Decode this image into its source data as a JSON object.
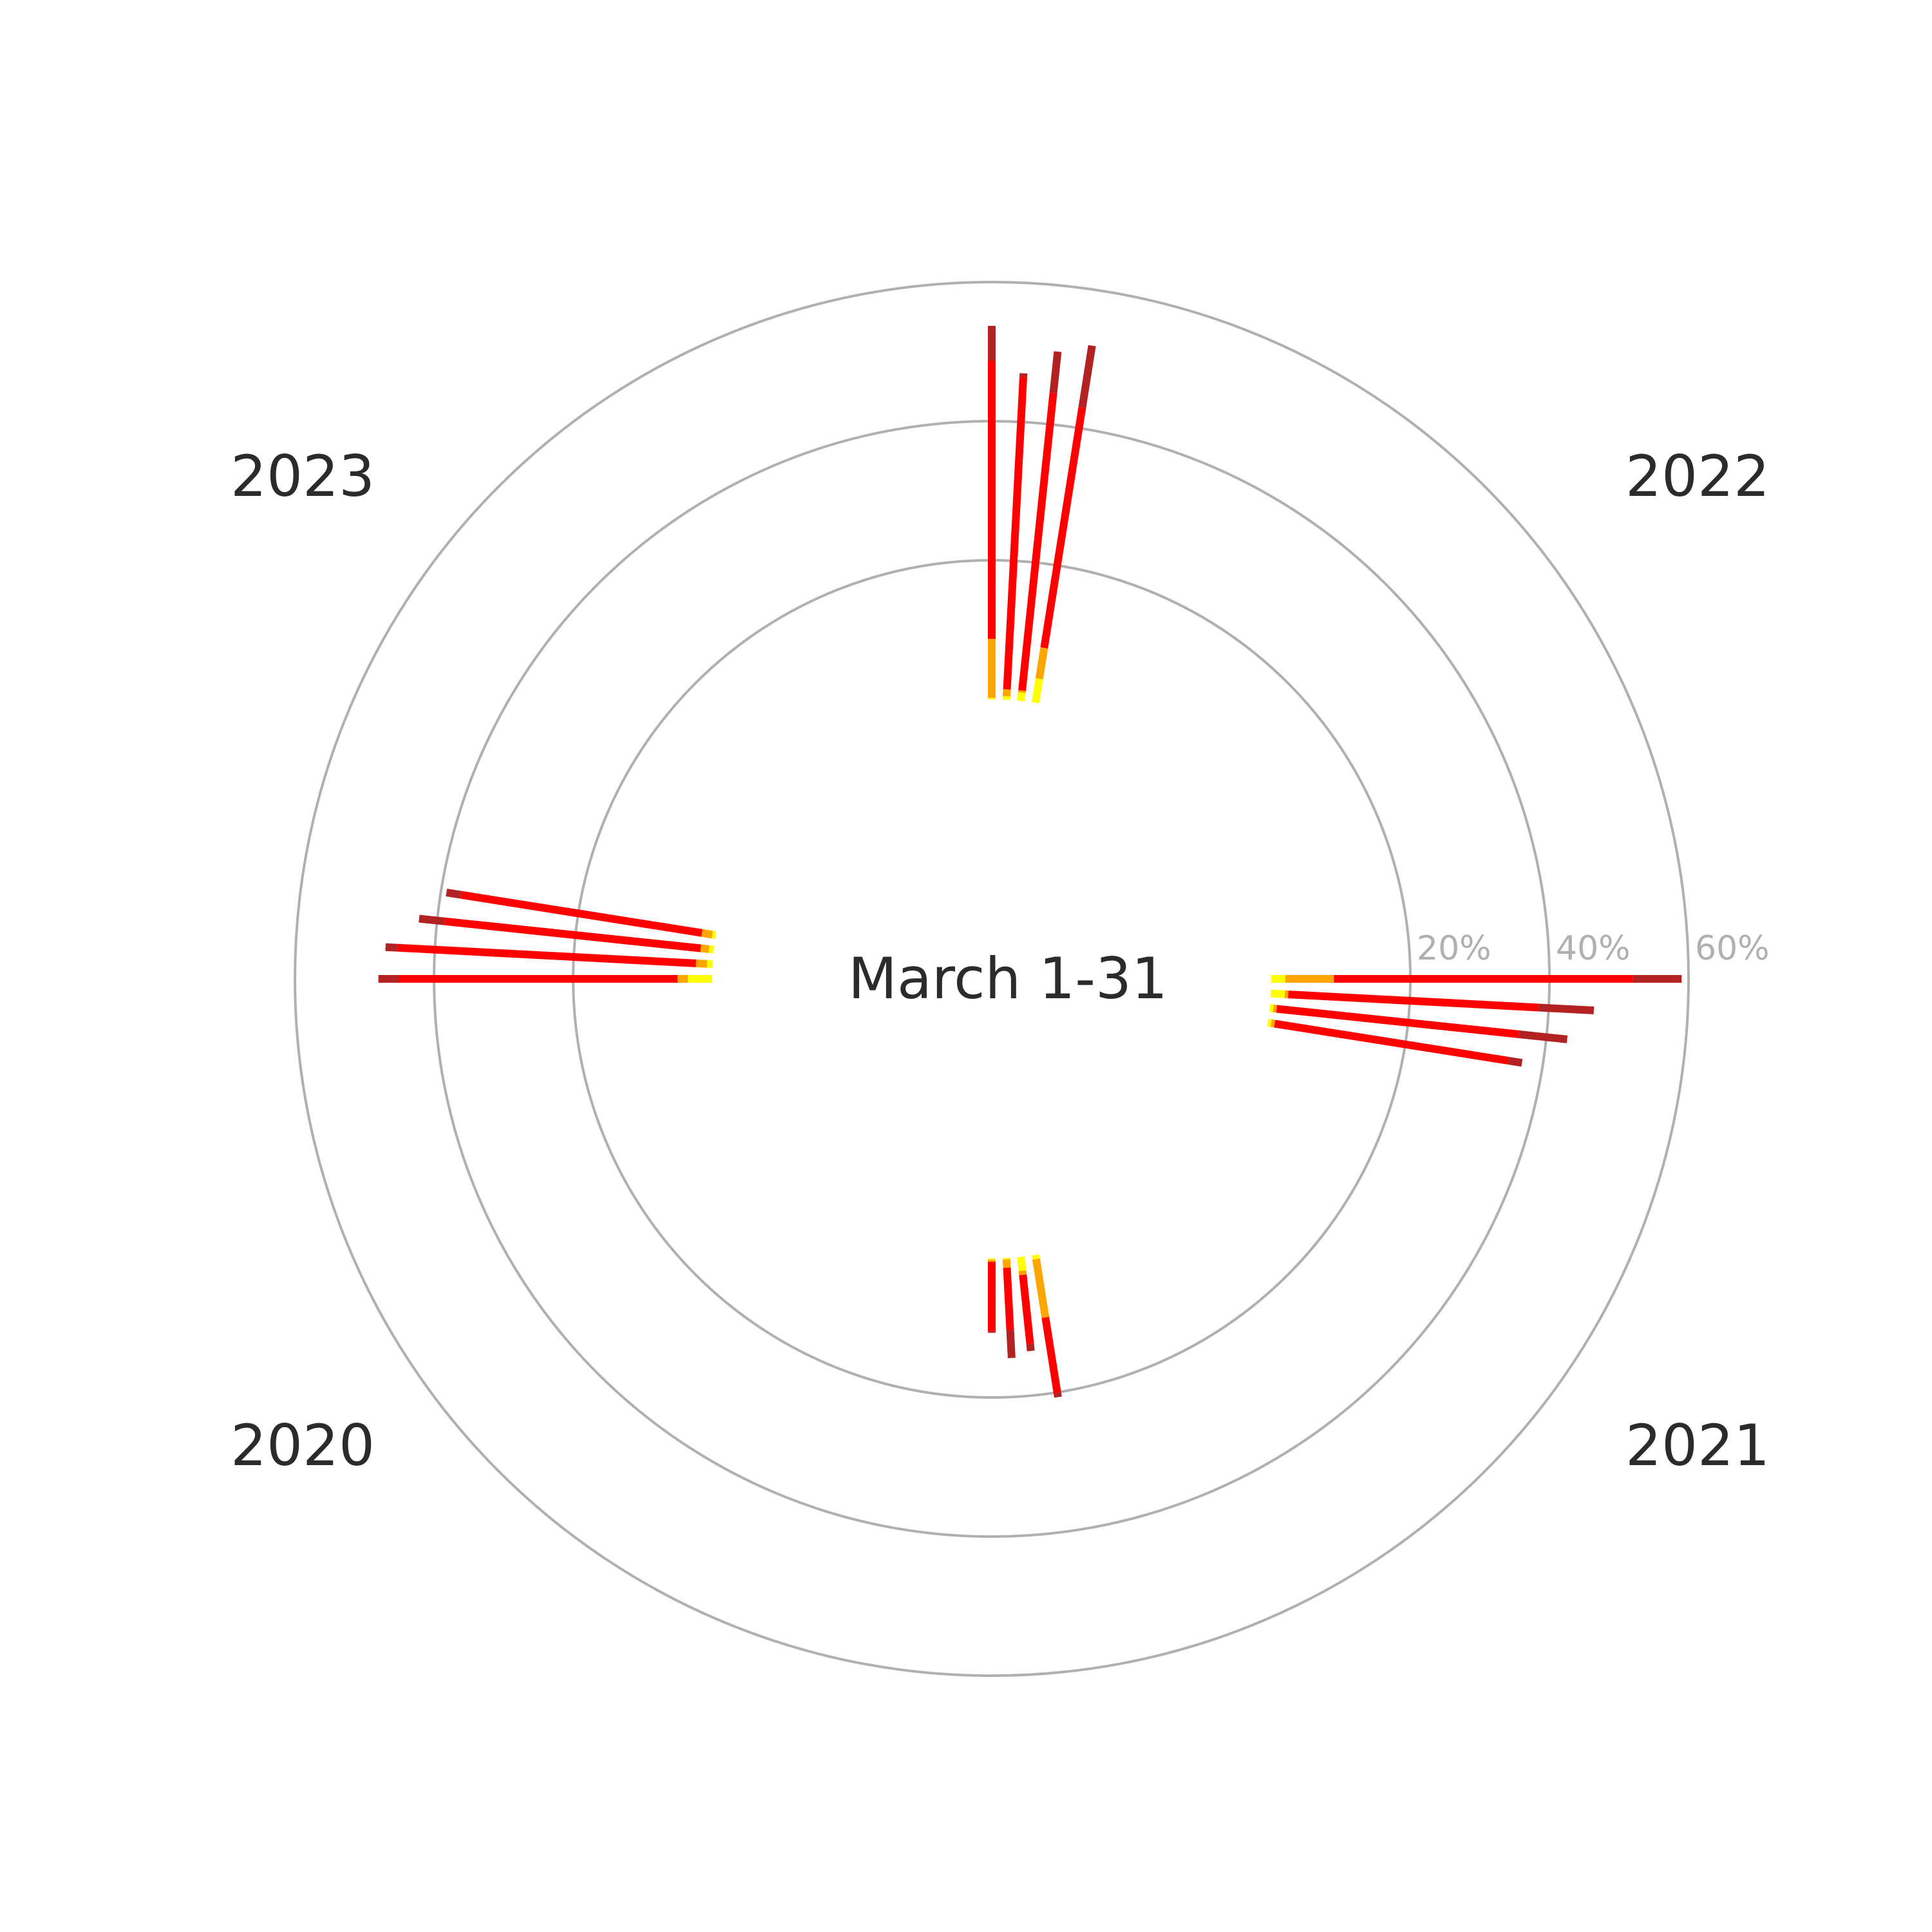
{
  "chart_data": {
    "type": "radial-stacked-bar",
    "title": "",
    "center_label": "March 1-31",
    "radial_ticks": [
      {
        "value": 20,
        "label": "20%"
      },
      {
        "value": 40,
        "label": "40%"
      },
      {
        "value": 60,
        "label": "60%"
      }
    ],
    "grid": true,
    "segment_colors": [
      "#ffff00",
      "#ffa500",
      "#ff0000",
      "#b22222"
    ],
    "groups": [
      {
        "name": "2021",
        "bars": [
          {
            "angle_deg": 0,
            "segments": [
              2,
              7,
              43,
              7
            ]
          },
          {
            "angle_deg": -3,
            "segments": [
              2,
              0.5,
              36,
              8
            ]
          },
          {
            "angle_deg": -6,
            "segments": [
              0.5,
              0.5,
              35,
              7
            ]
          },
          {
            "angle_deg": -9,
            "segments": [
              0.5,
              0.5,
              34,
              2
            ]
          }
        ]
      },
      {
        "name": "2020",
        "bars": [
          {
            "angle_deg": -90,
            "segments": [
              0.2,
              0.3,
              10,
              0.2
            ]
          },
          {
            "angle_deg": -87,
            "segments": [
              0.2,
              1.2,
              9,
              4
            ]
          },
          {
            "angle_deg": -84,
            "segments": [
              2,
              0.6,
              10,
              1
            ]
          },
          {
            "angle_deg": -81,
            "segments": [
              0.6,
              8.5,
              11,
              0.6
            ]
          }
        ]
      },
      {
        "name": "2023",
        "bars": [
          {
            "angle_deg": 180,
            "segments": [
              3.5,
              1.5,
              40,
              3
            ]
          },
          {
            "angle_deg": 177,
            "segments": [
              0.8,
              1.6,
              43,
              1.7
            ]
          },
          {
            "angle_deg": 174,
            "segments": [
              0.7,
              1.2,
              37,
              3.7
            ]
          },
          {
            "angle_deg": 171,
            "segments": [
              0.5,
              1.5,
              35,
              2.2
            ]
          }
        ]
      },
      {
        "name": "2022",
        "bars": [
          {
            "angle_deg": 90,
            "segments": [
              0.2,
              8.5,
              40,
              5
            ]
          },
          {
            "angle_deg": 87,
            "segments": [
              0.5,
              1,
              45,
              0.5
            ]
          },
          {
            "angle_deg": 84,
            "segments": [
              1.2,
              0.3,
              43,
              6
            ]
          },
          {
            "angle_deg": 81,
            "segments": [
              3.5,
              4.5,
              35,
              9
            ]
          }
        ]
      }
    ]
  }
}
